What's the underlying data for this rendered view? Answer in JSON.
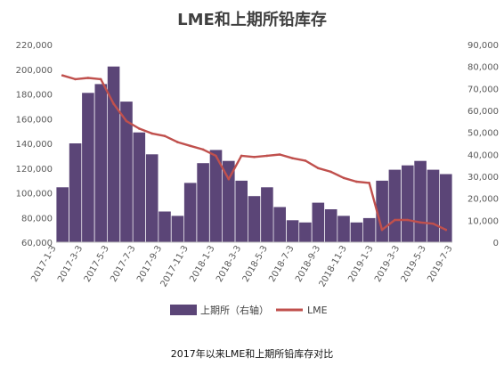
{
  "caption": "2017年以来LME和上期所铅库存对比",
  "chart_data": {
    "type": "bar",
    "title": "LME和上期所铅库存",
    "xlabel": "",
    "ylabel": "",
    "y_left_lim": [
      60000,
      220000
    ],
    "y_left_ticks": [
      "60,000",
      "80,000",
      "100,000",
      "120,000",
      "140,000",
      "160,000",
      "180,000",
      "200,000",
      "220,000"
    ],
    "y_right_lim": [
      0,
      90000
    ],
    "y_right_ticks": [
      "0",
      "10,000",
      "20,000",
      "30,000",
      "40,000",
      "50,000",
      "60,000",
      "70,000",
      "80,000",
      "90,000"
    ],
    "x_tick_labels": [
      "2017-1-3",
      "2017-3-3",
      "2017-5-3",
      "2017-7-3",
      "2017-9-3",
      "2017-11-3",
      "2018-1-3",
      "2018-3-3",
      "2018-5-3",
      "2018-7-3",
      "2018-9-3",
      "2018-11-3",
      "2019-1-3",
      "2019-3-3",
      "2019-5-3",
      "2019-7-3"
    ],
    "grid": false,
    "legend_position": "bottom",
    "colors": {
      "bars": "#5b4577",
      "line": "#c0504d",
      "axis_text": "#595959",
      "title": "#404040"
    },
    "series": [
      {
        "name": "上期所（右轴）",
        "kind": "bar",
        "axis": "right",
        "x": [
          "2017-01",
          "2017-02",
          "2017-03",
          "2017-04",
          "2017-05",
          "2017-06",
          "2017-07",
          "2017-08",
          "2017-09",
          "2017-10",
          "2017-11",
          "2017-12",
          "2018-01",
          "2018-02",
          "2018-03",
          "2018-04",
          "2018-05",
          "2018-06",
          "2018-07",
          "2018-08",
          "2018-09",
          "2018-10",
          "2018-11",
          "2018-12",
          "2019-01",
          "2019-02",
          "2019-03",
          "2019-04",
          "2019-05",
          "2019-06",
          "2019-07"
        ],
        "values": [
          25000,
          45000,
          68000,
          72000,
          80000,
          64000,
          50000,
          40000,
          14000,
          12000,
          27000,
          36000,
          42000,
          37000,
          28000,
          21000,
          25000,
          16000,
          10000,
          9000,
          18000,
          15000,
          12000,
          9000,
          11000,
          28000,
          33000,
          35000,
          37000,
          33000,
          31000
        ]
      },
      {
        "name": "LME",
        "kind": "line",
        "axis": "left",
        "x": [
          "2017-01",
          "2017-02",
          "2017-03",
          "2017-04",
          "2017-05",
          "2017-06",
          "2017-07",
          "2017-08",
          "2017-09",
          "2017-10",
          "2017-11",
          "2017-12",
          "2018-01",
          "2018-02",
          "2018-03",
          "2018-04",
          "2018-05",
          "2018-06",
          "2018-07",
          "2018-08",
          "2018-09",
          "2018-10",
          "2018-11",
          "2018-12",
          "2019-01",
          "2019-02",
          "2019-03",
          "2019-04",
          "2019-05",
          "2019-06",
          "2019-07"
        ],
        "values": [
          195000,
          192000,
          193000,
          192000,
          172000,
          158000,
          152000,
          148000,
          146000,
          141000,
          138000,
          135000,
          130000,
          111000,
          130000,
          129000,
          130000,
          131000,
          128000,
          126000,
          120000,
          117000,
          112000,
          109000,
          108000,
          70000,
          78000,
          78000,
          76000,
          75000,
          70000
        ]
      }
    ]
  }
}
